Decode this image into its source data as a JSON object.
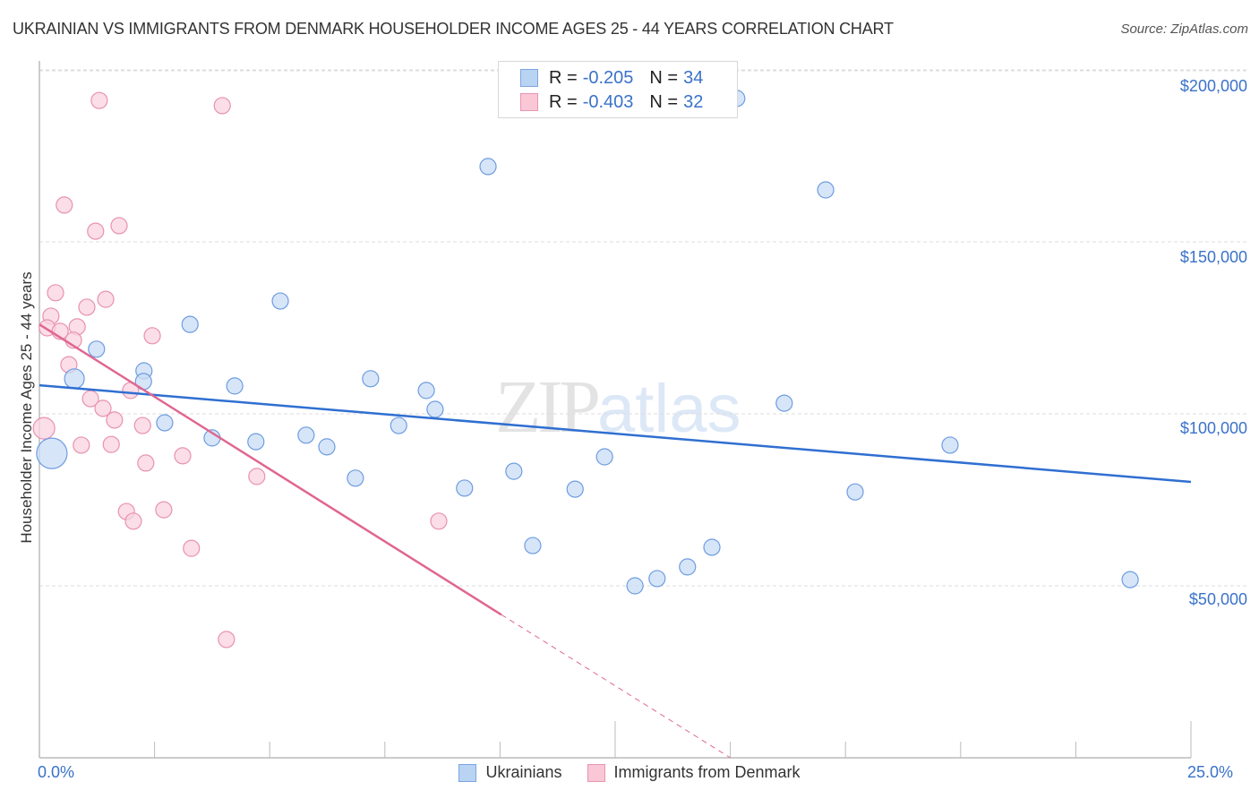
{
  "header": {
    "title": "UKRAINIAN VS IMMIGRANTS FROM DENMARK HOUSEHOLDER INCOME AGES 25 - 44 YEARS CORRELATION CHART",
    "source": "Source: ZipAtlas.com"
  },
  "watermark": {
    "part1": "ZIP",
    "part2": "atlas"
  },
  "legend": {
    "rows": [
      {
        "r_label": "R = ",
        "r_value": "-0.205",
        "n_label": "N = ",
        "n_value": "34",
        "color": "#b9d3f3",
        "border": "#7ba6e0"
      },
      {
        "r_label": "R = ",
        "r_value": "-0.403",
        "n_label": "N = ",
        "n_value": "32",
        "color": "#f9c7d6",
        "border": "#e895b0"
      }
    ]
  },
  "bottom_legend": {
    "items": [
      {
        "label": "Ukrainians",
        "color": "#b9d3f3",
        "border": "#7ba6e0"
      },
      {
        "label": "Immigrants from Denmark",
        "color": "#f9c7d6",
        "border": "#e895b0"
      }
    ]
  },
  "axes": {
    "y_title": "Householder Income Ages 25 - 44 years",
    "y_ticks": [
      "$200,000",
      "$150,000",
      "$100,000",
      "$50,000"
    ],
    "x_left": "0.0%",
    "x_right": "25.0%"
  },
  "colors": {
    "blue_fill": "#c9dcf5",
    "blue_stroke": "#6d9de0",
    "blue_line": "#2f6fd1",
    "pink_fill": "#fad3df",
    "pink_stroke": "#e892ae",
    "pink_line": "#e06690",
    "axis_label": "#3a72c9"
  },
  "chart_data": {
    "type": "scatter",
    "title": "UKRAINIAN VS IMMIGRANTS FROM DENMARK HOUSEHOLDER INCOME AGES 25 - 44 YEARS CORRELATION CHART",
    "xlabel": "",
    "ylabel": "Householder Income Ages 25 - 44 years",
    "xlim": [
      0,
      25
    ],
    "ylim": [
      0,
      208000
    ],
    "x_unit": "%",
    "y_ticks": [
      50000,
      100000,
      150000,
      200000
    ],
    "grid": true,
    "legend_position": "top-center",
    "series": [
      {
        "name": "Ukrainians",
        "r": -0.205,
        "n": 34,
        "trend": {
          "x": [
            0,
            25
          ],
          "y": [
            108300,
            80200
          ]
        },
        "points": [
          [
            15.14,
            191700
          ],
          [
            9.74,
            171900
          ],
          [
            17.07,
            165100
          ],
          [
            5.23,
            132800
          ],
          [
            3.27,
            126000
          ],
          [
            1.24,
            118800
          ],
          [
            2.27,
            112500
          ],
          [
            0.76,
            110200
          ],
          [
            2.26,
            109400
          ],
          [
            7.19,
            110200
          ],
          [
            4.24,
            108100
          ],
          [
            8.4,
            106800
          ],
          [
            16.17,
            103100
          ],
          [
            8.59,
            101300
          ],
          [
            2.72,
            97400
          ],
          [
            7.8,
            96600
          ],
          [
            3.75,
            93000
          ],
          [
            5.79,
            93800
          ],
          [
            4.7,
            91900
          ],
          [
            6.24,
            90400
          ],
          [
            19.77,
            90900
          ],
          [
            0.27,
            88500
          ],
          [
            12.27,
            87500
          ],
          [
            6.86,
            81300
          ],
          [
            10.3,
            83300
          ],
          [
            9.23,
            78400
          ],
          [
            11.63,
            78100
          ],
          [
            17.71,
            77300
          ],
          [
            10.71,
            61700
          ],
          [
            14.6,
            61200
          ],
          [
            14.07,
            55500
          ],
          [
            13.41,
            52100
          ],
          [
            12.93,
            50000
          ],
          [
            23.68,
            51800
          ]
        ],
        "sizes": [
          9,
          9,
          9,
          9,
          9,
          9,
          9,
          11,
          9,
          9,
          9,
          9,
          9,
          9,
          9,
          9,
          9,
          9,
          9,
          9,
          9,
          17,
          9,
          9,
          9,
          9,
          9,
          9,
          9,
          9,
          9,
          9,
          9,
          9
        ]
      },
      {
        "name": "Immigrants from Denmark",
        "r": -0.403,
        "n": 32,
        "trend": {
          "x": [
            0,
            10.03
          ],
          "y": [
            126000,
            41600
          ],
          "dashed_extension": {
            "x": [
              10.03,
              15.0
            ],
            "y": [
              41600,
              0
            ]
          }
        },
        "points": [
          [
            1.3,
            191100
          ],
          [
            3.97,
            189600
          ],
          [
            0.54,
            160700
          ],
          [
            1.22,
            153100
          ],
          [
            1.73,
            154700
          ],
          [
            0.35,
            135200
          ],
          [
            1.44,
            133300
          ],
          [
            1.03,
            131000
          ],
          [
            0.25,
            128400
          ],
          [
            0.17,
            125000
          ],
          [
            0.82,
            125300
          ],
          [
            0.45,
            124000
          ],
          [
            2.45,
            122700
          ],
          [
            0.74,
            121400
          ],
          [
            0.64,
            114300
          ],
          [
            1.98,
            106800
          ],
          [
            1.11,
            104400
          ],
          [
            1.38,
            101600
          ],
          [
            1.63,
            98200
          ],
          [
            2.24,
            96600
          ],
          [
            0.1,
            95800
          ],
          [
            0.91,
            90900
          ],
          [
            1.56,
            91100
          ],
          [
            3.11,
            87800
          ],
          [
            2.31,
            85700
          ],
          [
            4.72,
            81800
          ],
          [
            1.89,
            71600
          ],
          [
            2.7,
            72100
          ],
          [
            2.04,
            68800
          ],
          [
            8.67,
            68800
          ],
          [
            3.3,
            60900
          ],
          [
            4.06,
            34400
          ]
        ],
        "sizes": [
          9,
          9,
          9,
          9,
          9,
          9,
          9,
          9,
          9,
          9,
          9,
          9,
          9,
          9,
          9,
          9,
          9,
          9,
          9,
          9,
          12,
          9,
          9,
          9,
          9,
          9,
          9,
          9,
          9,
          9,
          9,
          9
        ]
      }
    ]
  }
}
